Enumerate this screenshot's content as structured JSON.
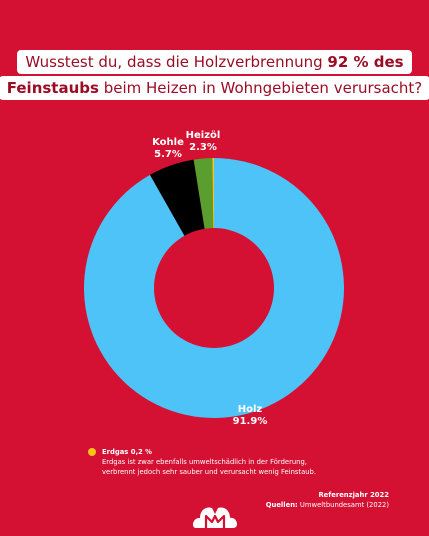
{
  "title": {
    "line1_pre": "Wusstest du, dass die Holzverbrennung ",
    "line1_bold": "92 % des",
    "line2_bold": "Feinstaubs",
    "line2_post": " beim Heizen in Wohngebieten verursacht?"
  },
  "chart_data": {
    "type": "pie",
    "donut": true,
    "slices": [
      {
        "label": "Holz",
        "value": 91.9,
        "display": "91.9%",
        "color": "#4dc3f7"
      },
      {
        "label": "Kohle",
        "value": 5.7,
        "display": "5.7%",
        "color": "#000000"
      },
      {
        "label": "Heizöl",
        "value": 2.3,
        "display": "2.3%",
        "color": "#5a9e2f"
      },
      {
        "label": "Erdgas",
        "value": 0.2,
        "display": "0,2 %",
        "color": "#f5c518"
      }
    ]
  },
  "note": {
    "heading": "Erdgas 0,2 %",
    "line1": "Erdgas ist zwar ebenfalls umweltschädlich in der Förderung,",
    "line2": "verbrennt jedoch sehr sauber und verursacht wenig Feinstaub."
  },
  "meta": {
    "year": "Referenzjahr 2022",
    "sources_label": "Quellen:",
    "sources_value": " Umweltbundesamt (2022)"
  },
  "logo": {
    "icon": "brand-logo-icon"
  }
}
